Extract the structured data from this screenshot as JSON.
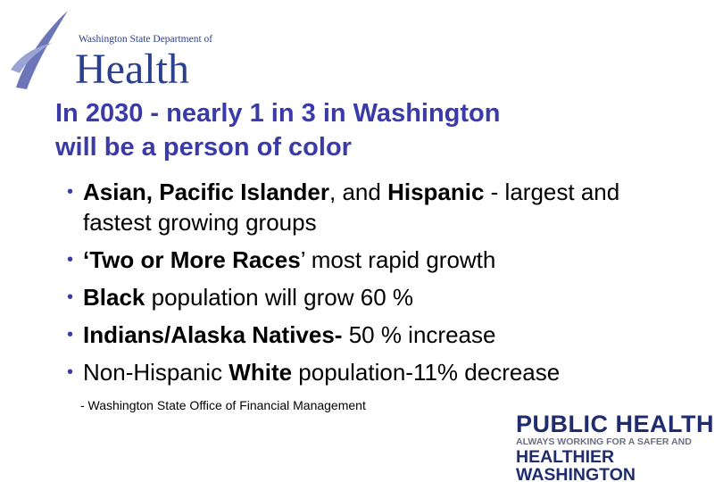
{
  "logo": {
    "org": "Washington State Department of",
    "name": "Health"
  },
  "title": {
    "lines": [
      "In 2030 - nearly 1 in 3 in Washington",
      "will be a person of color"
    ]
  },
  "bullets": [
    [
      {
        "text": "Asian, Pacific Islander",
        "bold": true
      },
      {
        "text": ", and ",
        "bold": false
      },
      {
        "text": "Hispanic",
        "bold": true
      },
      {
        "text": " - largest and fastest growing groups",
        "bold": false
      }
    ],
    [
      {
        "text": "‘Two or More Races",
        "bold": true
      },
      {
        "text": "’ most rapid growth",
        "bold": false
      }
    ],
    [
      {
        "text": "Black",
        "bold": true
      },
      {
        "text": " population will grow 60 %",
        "bold": false
      }
    ],
    [
      {
        "text": "Indians/Alaska Natives-",
        "bold": true
      },
      {
        "text": " 50 % increase",
        "bold": false
      }
    ],
    [
      {
        "text": "Non-Hispanic ",
        "bold": false
      },
      {
        "text": "White",
        "bold": true
      },
      {
        "text": " population-11% decrease",
        "bold": false
      }
    ]
  ],
  "source": "- Washington State Office of Financial Management",
  "footer": {
    "line1": "PUBLIC HEALTH",
    "line2": "ALWAYS WORKING FOR A SAFER AND",
    "line3": "HEALTHIER WASHINGTON"
  }
}
